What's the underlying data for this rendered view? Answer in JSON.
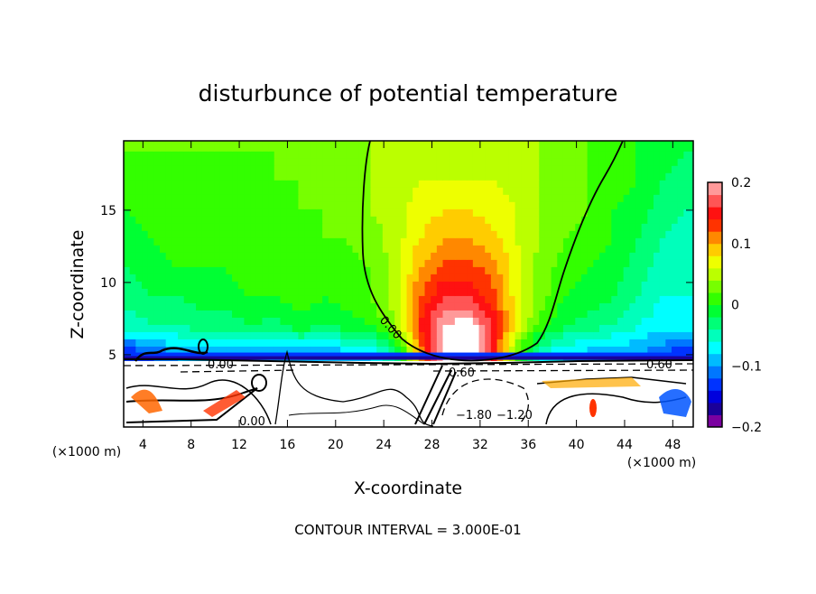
{
  "chart_data": {
    "type": "heatmap",
    "title": "disturbunce of potential temperature",
    "xlabel": "X-coordinate",
    "ylabel": "Z-coordinate",
    "x_unit_left": "(×1000 m)",
    "x_unit_right": "(×1000 m)",
    "footer": "CONTOUR INTERVAL = 3.000E-01",
    "xlim": [
      2.4,
      49.7
    ],
    "ylim": [
      0,
      19.8
    ],
    "x_ticks": [
      "4",
      "8",
      "12",
      "16",
      "20",
      "24",
      "28",
      "32",
      "36",
      "40",
      "44",
      "48"
    ],
    "y_ticks": [
      "5",
      "10",
      "15"
    ],
    "grid_x": [
      3,
      5,
      7,
      9,
      11,
      13,
      15,
      17,
      19,
      21,
      23,
      25,
      27,
      29,
      31,
      33,
      35,
      37,
      39,
      41,
      43,
      45,
      47,
      49
    ],
    "grid_y": [
      19,
      17,
      15,
      13,
      11,
      9,
      7,
      5
    ],
    "field_lower_limit_z": 4.6,
    "values": [
      [
        0.02,
        0.02,
        0.02,
        0.02,
        0.02,
        0.02,
        0.02,
        0.02,
        0.03,
        0.03,
        0.04,
        0.05,
        0.05,
        0.05,
        0.05,
        0.05,
        0.05,
        0.04,
        0.03,
        0.02,
        0.01,
        0.0,
        -0.01,
        -0.02
      ],
      [
        0.01,
        0.01,
        0.01,
        0.01,
        0.01,
        0.01,
        0.02,
        0.02,
        0.03,
        0.03,
        0.04,
        0.05,
        0.06,
        0.06,
        0.06,
        0.06,
        0.05,
        0.04,
        0.03,
        0.02,
        0.01,
        0.0,
        -0.02,
        -0.03
      ],
      [
        0.0,
        0.01,
        0.01,
        0.01,
        0.01,
        0.01,
        0.01,
        0.02,
        0.02,
        0.03,
        0.04,
        0.05,
        0.07,
        0.08,
        0.08,
        0.07,
        0.06,
        0.04,
        0.03,
        0.02,
        0.0,
        -0.01,
        -0.03,
        -0.04
      ],
      [
        -0.01,
        0.0,
        0.01,
        0.01,
        0.01,
        0.01,
        0.01,
        0.01,
        0.02,
        0.02,
        0.03,
        0.05,
        0.08,
        0.1,
        0.1,
        0.09,
        0.06,
        0.04,
        0.02,
        0.01,
        0.0,
        -0.02,
        -0.04,
        -0.05
      ],
      [
        -0.02,
        -0.01,
        0.0,
        0.0,
        0.0,
        0.01,
        0.01,
        0.01,
        0.01,
        0.01,
        0.02,
        0.05,
        0.1,
        0.13,
        0.13,
        0.11,
        0.07,
        0.03,
        0.01,
        0.0,
        -0.01,
        -0.03,
        -0.05,
        -0.06
      ],
      [
        -0.03,
        -0.02,
        -0.02,
        -0.01,
        -0.01,
        0.0,
        0.0,
        0.01,
        0.0,
        0.01,
        0.02,
        0.05,
        0.12,
        0.16,
        0.16,
        0.13,
        0.07,
        0.03,
        0.0,
        -0.01,
        -0.02,
        -0.04,
        -0.06,
        -0.06
      ],
      [
        -0.05,
        -0.04,
        -0.04,
        -0.03,
        -0.03,
        -0.02,
        -0.03,
        -0.01,
        -0.02,
        -0.01,
        0.0,
        0.04,
        0.14,
        0.2,
        0.22,
        0.16,
        0.07,
        0.01,
        -0.02,
        -0.03,
        -0.04,
        -0.06,
        -0.07,
        -0.07
      ],
      [
        -0.14,
        -0.12,
        -0.1,
        -0.1,
        -0.1,
        -0.1,
        -0.1,
        -0.1,
        -0.1,
        -0.09,
        -0.08,
        -0.04,
        0.1,
        0.22,
        0.24,
        0.15,
        0.02,
        -0.06,
        -0.08,
        -0.09,
        -0.1,
        -0.1,
        -0.12,
        -0.14
      ]
    ],
    "colorbar": {
      "min": -0.2,
      "max": 0.2,
      "step": 0.02,
      "tick_labels": [
        "0.2",
        "0.1",
        "0",
        "−0.1",
        "−0.2"
      ],
      "tick_values": [
        0.2,
        0.1,
        0,
        -0.1,
        -0.2
      ],
      "colors_low_to_high": [
        "#7a00a0",
        "#1a0099",
        "#0000dd",
        "#0033ff",
        "#0077ff",
        "#00bbff",
        "#00ffff",
        "#00ffbb",
        "#00ff77",
        "#00ff33",
        "#33ff00",
        "#77ff00",
        "#bbff00",
        "#eeff00",
        "#ffcc00",
        "#ff8800",
        "#ff3300",
        "#ff1111",
        "#ff5555",
        "#ff9999"
      ],
      "above_max_color": "#ffffff"
    },
    "contour_labels": [
      "0.00",
      "0.00",
      "0.60",
      "0.60",
      "−1.80",
      "−1.20",
      "0.00"
    ]
  }
}
